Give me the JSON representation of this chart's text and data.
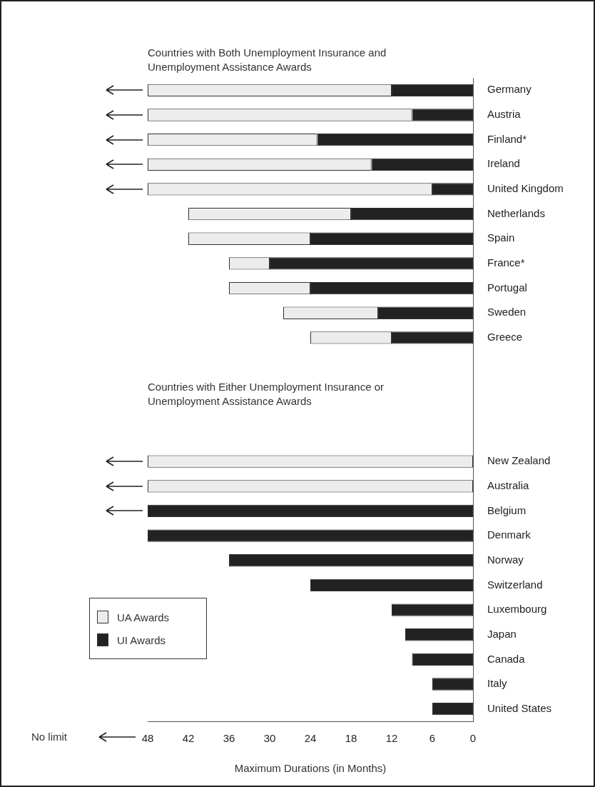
{
  "chart_data": {
    "type": "bar",
    "orientation": "horizontal",
    "stacked": true,
    "title": "Countries with Both Unemployment  Insurance and Unemployment Assistance Awards",
    "xlabel": "Maximum Durations (in Months)",
    "categories": [
      "Germany",
      "Austria",
      "Finland*",
      "Ireland",
      "United Kingdom",
      "Netherlands",
      "Spain",
      "France*",
      "Portugal",
      "Sweden",
      "Greece",
      null,
      null,
      null,
      null,
      "New Zealand",
      "Australia",
      "Belgium",
      "Denmark",
      "Norway",
      "Switzerland",
      "Luxembourg",
      "Japan",
      "Canada",
      "Italy",
      "United States"
    ],
    "series": [
      {
        "name": "UI Awards",
        "color": "#222222",
        "values": [
          12,
          9,
          23,
          15,
          6,
          18,
          24,
          30,
          24,
          14,
          12,
          null,
          null,
          null,
          null,
          null,
          null,
          48,
          48,
          36,
          24,
          12,
          10,
          9,
          6,
          6
        ]
      },
      {
        "name": "UA Awards",
        "color": "#ececec",
        "values": [
          36,
          39,
          25,
          33,
          42,
          24,
          18,
          6,
          12,
          14,
          12,
          null,
          null,
          null,
          null,
          48,
          48,
          null,
          null,
          null,
          null,
          null,
          null,
          null,
          null,
          null
        ]
      }
    ],
    "xlim": [
      48,
      0
    ],
    "xticks": [
      48,
      42,
      36,
      30,
      24,
      18,
      12,
      6,
      0
    ],
    "grid": false,
    "legend": "bottom left",
    "annotations": [
      "Countries with Either Unemployment  Insurance or Unemployment Assistance Awards",
      "No limit"
    ]
  }
}
